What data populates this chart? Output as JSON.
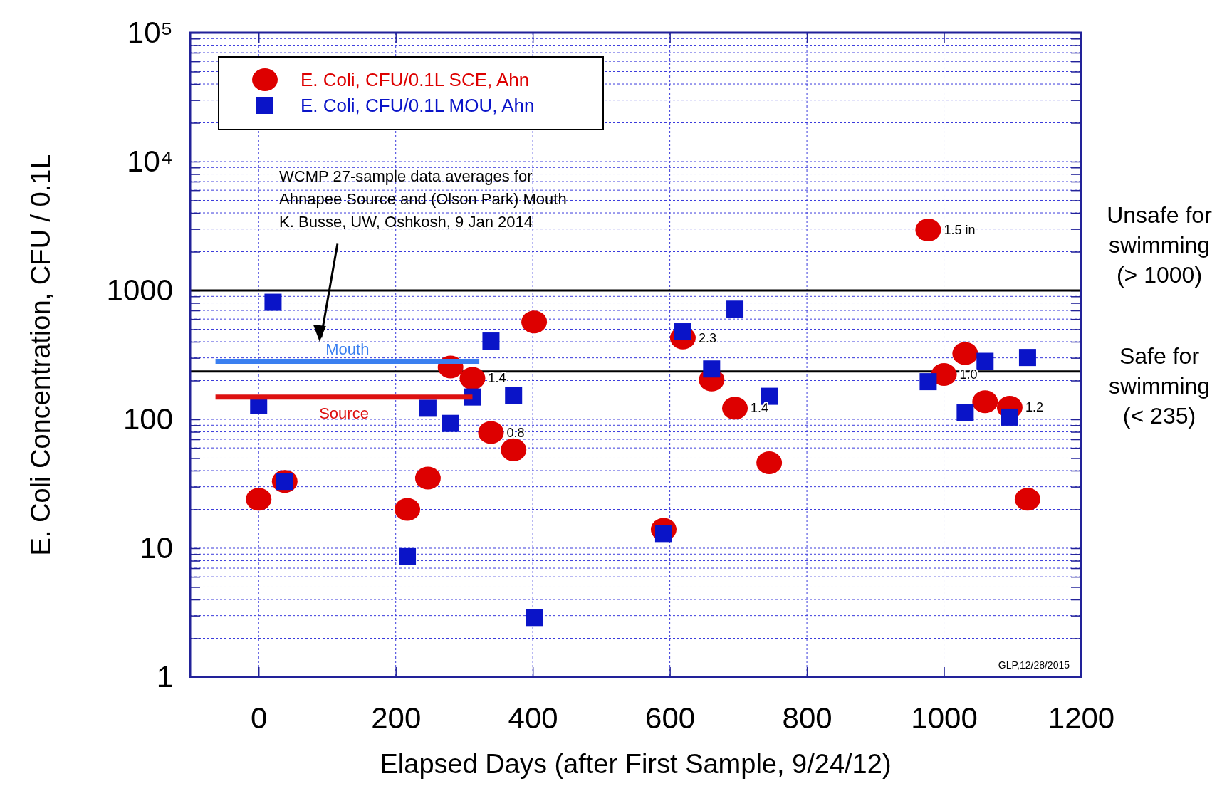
{
  "chart_data": {
    "type": "scatter",
    "xlabel": "Elapsed Days (after First Sample, 9/24/12)",
    "ylabel": "E. Coli Concentration, CFU / 0.1L",
    "log": "y",
    "grid": true,
    "legend": "top left",
    "xlim": [
      -100,
      1200
    ],
    "xticks": [
      0,
      200,
      400,
      600,
      800,
      1000,
      1200
    ],
    "ylim": [
      1,
      100000
    ],
    "yticks": [
      1,
      {
        "value": 2,
        "label": null
      },
      {
        "value": 3,
        "label": null
      },
      {
        "value": 4,
        "label": null
      },
      {
        "value": 5,
        "label": null
      },
      {
        "value": 6,
        "label": null
      },
      {
        "value": 7,
        "label": null
      },
      {
        "value": 8,
        "label": null
      },
      {
        "value": 9,
        "label": null
      },
      10,
      {
        "value": 20,
        "label": null
      },
      {
        "value": 30,
        "label": null
      },
      {
        "value": 40,
        "label": null
      },
      {
        "value": 50,
        "label": null
      },
      {
        "value": 60,
        "label": null
      },
      {
        "value": 70,
        "label": null
      },
      {
        "value": 80,
        "label": null
      },
      {
        "value": 90,
        "label": null
      },
      100,
      {
        "value": 200,
        "label": null
      },
      {
        "value": 300,
        "label": null
      },
      {
        "value": 400,
        "label": null
      },
      {
        "value": 500,
        "label": null
      },
      {
        "value": 600,
        "label": null
      },
      {
        "value": 700,
        "label": null
      },
      {
        "value": 800,
        "label": null
      },
      {
        "value": 900,
        "label": null
      },
      1000,
      {
        "value": 2000,
        "label": null
      },
      {
        "value": 3000,
        "label": null
      },
      {
        "value": 4000,
        "label": null
      },
      {
        "value": 5000,
        "label": null
      },
      {
        "value": 6000,
        "label": null
      },
      {
        "value": 7000,
        "label": null
      },
      {
        "value": 8000,
        "label": null
      },
      {
        "value": 9000,
        "label": null
      },
      {
        "value": 10000,
        "label": "10⁴"
      },
      {
        "value": 20000,
        "label": null
      },
      {
        "value": 30000,
        "label": null
      },
      {
        "value": 40000,
        "label": null
      },
      {
        "value": 50000,
        "label": null
      },
      {
        "value": 60000,
        "label": null
      },
      {
        "value": 70000,
        "label": null
      },
      {
        "value": 80000,
        "label": null
      },
      {
        "value": 90000,
        "label": null
      },
      {
        "value": 100000,
        "label": "10⁵"
      }
    ],
    "series": [
      {
        "name": "E. Coli, CFU/0.1L SCE, Ahn",
        "marker": "circle",
        "color": "#dd0000",
        "x": [
          0,
          38,
          217,
          247,
          280,
          312,
          339,
          372,
          402,
          591,
          619,
          661,
          695,
          745,
          977,
          1000,
          1031,
          1060,
          1096,
          1122
        ],
        "values": [
          24,
          33,
          20,
          35,
          255,
          208,
          79,
          58,
          570,
          14,
          428,
          202,
          122,
          46,
          2950,
          223,
          324,
          137,
          124,
          24
        ]
      },
      {
        "name": "E. Coli, CFU/0.1L MOU, Ahn",
        "marker": "square",
        "color": "#0a14c8",
        "x": [
          0,
          21,
          38,
          217,
          247,
          280,
          312,
          339,
          372,
          402,
          591,
          619,
          661,
          695,
          745,
          977,
          1031,
          1060,
          1096,
          1122
        ],
        "values": [
          128,
          810,
          33,
          8.6,
          122,
          93,
          149,
          405,
          153,
          2.9,
          13,
          478,
          246,
          716,
          151,
          196,
          113,
          282,
          104,
          302
        ]
      },
      {
        "name": "Mouth",
        "type": "line",
        "color": "#3a7ff0",
        "x": [
          -63,
          322
        ],
        "values": [
          282,
          282
        ]
      },
      {
        "name": "Source",
        "type": "line",
        "color": "#dd1111",
        "x": [
          -63,
          312
        ],
        "values": [
          149,
          149
        ]
      }
    ],
    "ref_lines": [
      {
        "axis": "y",
        "value": 1000,
        "label": "Unsafe for\nswimming\n(> 1000)",
        "color": "#000000"
      },
      {
        "axis": "y",
        "value": 235,
        "label": "Safe for\nswimming\n(< 235)",
        "color": "#000000"
      }
    ],
    "annotations": [
      {
        "text": "1.4",
        "x": 312,
        "y": 208
      },
      {
        "text": "0.8",
        "x": 339,
        "y": 79
      },
      {
        "text": "2.3",
        "x": 619,
        "y": 428
      },
      {
        "text": "1.4",
        "x": 695,
        "y": 122
      },
      {
        "text": "1.5 in",
        "x": 977,
        "y": 2950
      },
      {
        "text": "1.0",
        "x": 1000,
        "y": 223
      },
      {
        "text": "1.2",
        "x": 1096,
        "y": 124
      },
      "WCMP 27-sample data averages for\nAhnapee Source and (Olson Park) Mouth\nK. Busse, UW, Oshkosh, 9 Jan 2014",
      "GLP,12/28/2015"
    ]
  }
}
